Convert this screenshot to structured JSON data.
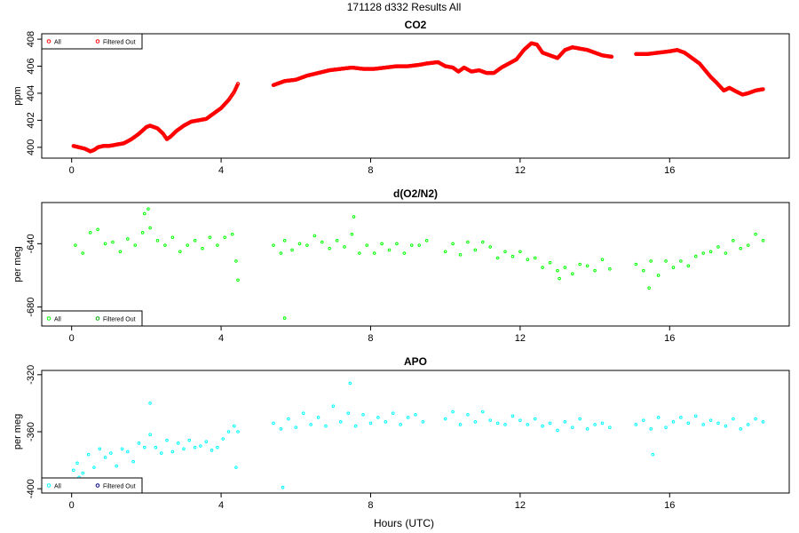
{
  "figure": {
    "title": "171128   d332   Results All",
    "xlabel": "Hours (UTC)"
  },
  "chart_data": [
    {
      "type": "scatter",
      "title": "CO2",
      "ylabel": "ppm",
      "xlim": [
        -0.8,
        19.2
      ],
      "ylim": [
        399.2,
        408.4
      ],
      "xticks": [
        0,
        4,
        8,
        12,
        16
      ],
      "yticks": [
        400,
        402,
        404,
        406,
        408
      ],
      "legend": {
        "position": "top-left",
        "entries": [
          "All",
          "Filtered Out"
        ]
      },
      "series": [
        {
          "name": "All",
          "color": "#ff0000",
          "x": [
            0.05,
            0.2,
            0.35,
            0.5,
            0.6,
            0.7,
            0.85,
            1.0,
            1.2,
            1.4,
            1.6,
            1.8,
            2.0,
            2.1,
            2.3,
            2.45,
            2.55,
            2.65,
            2.8,
            3.0,
            3.2,
            3.4,
            3.6,
            3.8,
            4.0,
            4.2,
            4.35,
            4.45,
            5.4,
            5.7,
            6.0,
            6.3,
            6.6,
            6.9,
            7.2,
            7.5,
            7.8,
            8.1,
            8.4,
            8.7,
            9.0,
            9.3,
            9.5,
            9.8,
            10.0,
            10.2,
            10.35,
            10.5,
            10.7,
            10.9,
            11.1,
            11.3,
            11.5,
            11.7,
            11.9,
            12.1,
            12.3,
            12.45,
            12.6,
            12.8,
            13.0,
            13.2,
            13.4,
            13.6,
            13.8,
            14.0,
            14.2,
            14.45,
            15.1,
            15.4,
            15.7,
            16.0,
            16.2,
            16.4,
            16.6,
            16.8,
            16.95,
            17.1,
            17.25,
            17.45,
            17.6,
            17.8,
            17.95,
            18.1,
            18.3,
            18.5
          ],
          "y": [
            400.1,
            400.0,
            399.9,
            399.7,
            399.8,
            400.0,
            400.1,
            400.1,
            400.2,
            400.3,
            400.6,
            401.0,
            401.5,
            401.6,
            401.4,
            401.0,
            400.6,
            400.8,
            401.2,
            401.6,
            401.9,
            402.0,
            402.1,
            402.5,
            402.9,
            403.5,
            404.1,
            404.7,
            404.6,
            404.9,
            405.0,
            405.3,
            405.5,
            405.7,
            405.8,
            405.9,
            405.8,
            405.8,
            405.9,
            406.0,
            406.0,
            406.1,
            406.2,
            406.3,
            406.0,
            405.9,
            405.6,
            405.9,
            405.6,
            405.7,
            405.5,
            405.5,
            405.9,
            406.2,
            406.5,
            407.2,
            407.7,
            407.6,
            407.0,
            406.8,
            406.6,
            407.2,
            407.4,
            407.3,
            407.2,
            407.0,
            406.8,
            406.7,
            406.9,
            406.9,
            407.0,
            407.1,
            407.2,
            407.0,
            406.6,
            406.2,
            405.7,
            405.2,
            404.8,
            404.2,
            404.4,
            404.1,
            403.9,
            404.0,
            404.2,
            404.3
          ]
        },
        {
          "name": "Filtered Out",
          "color": "#ff0000",
          "x": [],
          "y": []
        }
      ]
    },
    {
      "type": "scatter",
      "title": "d(O2/N2)",
      "ylabel": "per meg",
      "xlim": [
        -0.8,
        19.2
      ],
      "ylim": [
        -692,
        -614
      ],
      "xticks": [
        0,
        4,
        8,
        12,
        16
      ],
      "yticks": [
        -640,
        -680
      ],
      "legend": {
        "position": "bottom-left",
        "entries": [
          "All",
          "Filtered Out"
        ]
      },
      "series": [
        {
          "name": "All",
          "color": "#00ff00",
          "x": [
            0.1,
            0.3,
            0.5,
            0.7,
            0.9,
            1.1,
            1.3,
            1.5,
            1.7,
            1.9,
            2.1,
            2.3,
            2.5,
            2.7,
            2.9,
            3.1,
            3.3,
            3.5,
            3.7,
            3.9,
            4.1,
            4.3,
            4.4,
            5.4,
            5.6,
            5.7,
            5.9,
            6.1,
            6.3,
            6.5,
            6.7,
            6.9,
            7.1,
            7.3,
            7.5,
            7.7,
            7.9,
            8.1,
            8.3,
            8.5,
            8.7,
            8.9,
            9.1,
            9.3,
            9.5,
            10.0,
            10.2,
            10.4,
            10.6,
            10.8,
            11.0,
            11.2,
            11.4,
            11.6,
            11.8,
            12.0,
            12.2,
            12.4,
            12.6,
            12.8,
            13.0,
            13.2,
            13.4,
            13.6,
            13.8,
            14.0,
            14.2,
            14.4,
            15.1,
            15.3,
            15.5,
            15.7,
            15.9,
            16.1,
            16.3,
            16.5,
            16.7,
            16.9,
            17.1,
            17.3,
            17.5,
            17.7,
            17.9,
            18.1,
            18.3,
            18.5,
            2.05,
            1.95,
            7.55,
            15.45,
            4.45,
            13.05,
            5.7
          ],
          "y": [
            -641,
            -646,
            -633,
            -631,
            -640,
            -639,
            -645,
            -637,
            -641,
            -633,
            -630,
            -638,
            -641,
            -636,
            -645,
            -641,
            -638,
            -643,
            -636,
            -641,
            -636,
            -634,
            -651,
            -641,
            -646,
            -638,
            -644,
            -640,
            -641,
            -635,
            -639,
            -643,
            -638,
            -642,
            -634,
            -646,
            -641,
            -646,
            -640,
            -644,
            -640,
            -646,
            -641,
            -641,
            -638,
            -645,
            -640,
            -647,
            -639,
            -644,
            -639,
            -642,
            -649,
            -645,
            -648,
            -645,
            -650,
            -649,
            -655,
            -652,
            -657,
            -655,
            -659,
            -653,
            -654,
            -657,
            -650,
            -656,
            -653,
            -657,
            -651,
            -660,
            -651,
            -655,
            -651,
            -654,
            -648,
            -646,
            -645,
            -642,
            -646,
            -638,
            -643,
            -641,
            -634,
            -638,
            -618,
            -621,
            -623,
            -668,
            -663,
            -662,
            -687
          ],
          "marker_size": "small"
        },
        {
          "name": "Filtered Out",
          "color": "#00aa00",
          "x": [],
          "y": []
        }
      ]
    },
    {
      "type": "scatter",
      "title": "APO",
      "ylabel": "per meg",
      "xlim": [
        -0.8,
        19.2
      ],
      "ylim": [
        -403,
        -317
      ],
      "xticks": [
        0,
        4,
        8,
        12,
        16
      ],
      "yticks": [
        -320,
        -360,
        -400
      ],
      "legend": {
        "position": "bottom-left",
        "entries": [
          "All",
          "Filtered Out"
        ]
      },
      "series": [
        {
          "name": "All",
          "color": "#00ffff",
          "x": [
            0.05,
            0.15,
            0.3,
            0.45,
            0.6,
            0.75,
            0.9,
            1.05,
            1.2,
            1.35,
            1.5,
            1.65,
            1.8,
            1.95,
            2.1,
            2.25,
            2.4,
            2.55,
            2.7,
            2.85,
            3.0,
            3.15,
            3.3,
            3.45,
            3.6,
            3.75,
            3.9,
            4.05,
            4.2,
            4.35,
            4.45,
            5.4,
            5.6,
            5.8,
            6.0,
            6.2,
            6.4,
            6.6,
            6.8,
            7.0,
            7.2,
            7.4,
            7.6,
            7.8,
            8.0,
            8.2,
            8.4,
            8.6,
            8.8,
            9.0,
            9.2,
            9.4,
            10.0,
            10.2,
            10.4,
            10.6,
            10.8,
            11.0,
            11.2,
            11.4,
            11.6,
            11.8,
            12.0,
            12.2,
            12.4,
            12.6,
            12.8,
            13.0,
            13.2,
            13.4,
            13.6,
            13.8,
            14.0,
            14.2,
            14.4,
            15.1,
            15.3,
            15.5,
            15.7,
            15.9,
            16.1,
            16.3,
            16.5,
            16.7,
            16.9,
            17.1,
            17.3,
            17.5,
            17.7,
            17.9,
            18.1,
            18.3,
            18.5,
            7.45,
            2.1,
            5.65,
            0.2,
            4.4,
            15.55
          ],
          "y": [
            -387,
            -382,
            -389,
            -376,
            -385,
            -372,
            -378,
            -375,
            -384,
            -372,
            -374,
            -381,
            -368,
            -371,
            -362,
            -371,
            -375,
            -366,
            -374,
            -368,
            -372,
            -366,
            -371,
            -370,
            -367,
            -373,
            -371,
            -365,
            -360,
            -356,
            -360,
            -354,
            -358,
            -351,
            -357,
            -347,
            -355,
            -350,
            -356,
            -342,
            -353,
            -347,
            -356,
            -348,
            -354,
            -350,
            -353,
            -347,
            -355,
            -350,
            -348,
            -353,
            -351,
            -346,
            -355,
            -348,
            -353,
            -346,
            -352,
            -354,
            -355,
            -349,
            -352,
            -355,
            -351,
            -356,
            -354,
            -359,
            -353,
            -357,
            -351,
            -358,
            -355,
            -354,
            -357,
            -355,
            -352,
            -358,
            -350,
            -357,
            -353,
            -350,
            -354,
            -349,
            -355,
            -352,
            -354,
            -356,
            -351,
            -358,
            -355,
            -351,
            -353,
            -326,
            -340,
            -399,
            -392,
            -385,
            -376
          ],
          "marker_size": "small"
        },
        {
          "name": "Filtered Out",
          "color": "#000080",
          "x": [],
          "y": []
        }
      ]
    }
  ]
}
